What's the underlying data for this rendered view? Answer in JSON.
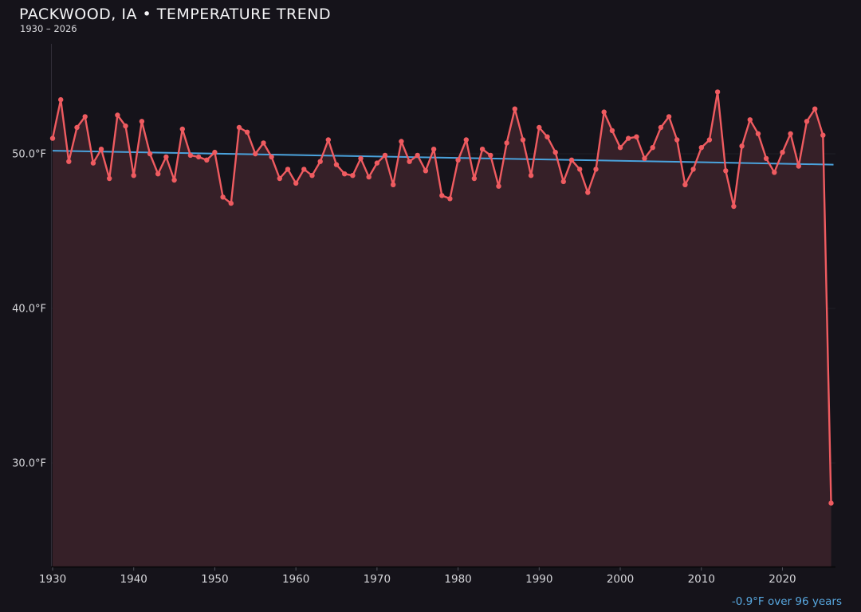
{
  "header": {
    "title": "PACKWOOD, IA • TEMPERATURE TREND",
    "subtitle": "1930 – 2026"
  },
  "footer": {
    "trend_label": "-0.9°F over 96 years"
  },
  "chart_data": {
    "type": "line",
    "title": "PACKWOOD, IA • TEMPERATURE TREND",
    "subtitle": "1930 – 2026",
    "xlabel": "",
    "ylabel": "",
    "legend_position": "none",
    "grid": "faint-horizontal",
    "area_fill_below_line": true,
    "xlim": [
      1929.9,
      2026.5
    ],
    "ylim": [
      23.3,
      57.1
    ],
    "y_ticks": [
      {
        "value": 50,
        "label": "50.0°F"
      },
      {
        "value": 40,
        "label": "40.0°F"
      },
      {
        "value": 30,
        "label": "30.0°F"
      }
    ],
    "x_ticks": [
      {
        "value": 1930,
        "label": "1930"
      },
      {
        "value": 1940,
        "label": "1940"
      },
      {
        "value": 1950,
        "label": "1950"
      },
      {
        "value": 1960,
        "label": "1960"
      },
      {
        "value": 1970,
        "label": "1970"
      },
      {
        "value": 1980,
        "label": "1980"
      },
      {
        "value": 1990,
        "label": "1990"
      },
      {
        "value": 2000,
        "label": "2000"
      },
      {
        "value": 2010,
        "label": "2010"
      },
      {
        "value": 2020,
        "label": "2020"
      }
    ],
    "years": [
      1930,
      1931,
      1932,
      1933,
      1934,
      1935,
      1936,
      1937,
      1938,
      1939,
      1940,
      1941,
      1942,
      1943,
      1944,
      1945,
      1946,
      1947,
      1948,
      1949,
      1950,
      1951,
      1952,
      1953,
      1954,
      1955,
      1956,
      1957,
      1958,
      1959,
      1960,
      1961,
      1962,
      1963,
      1964,
      1965,
      1966,
      1967,
      1968,
      1969,
      1970,
      1971,
      1972,
      1973,
      1974,
      1975,
      1976,
      1977,
      1978,
      1979,
      1980,
      1981,
      1982,
      1983,
      1984,
      1985,
      1986,
      1987,
      1988,
      1989,
      1990,
      1991,
      1992,
      1993,
      1994,
      1995,
      1996,
      1997,
      1998,
      1999,
      2000,
      2001,
      2002,
      2003,
      2004,
      2005,
      2006,
      2007,
      2008,
      2009,
      2010,
      2011,
      2012,
      2013,
      2014,
      2015,
      2016,
      2017,
      2018,
      2019,
      2020,
      2021,
      2022,
      2023,
      2024,
      2025,
      2026
    ],
    "values": [
      51.0,
      53.5,
      49.5,
      51.7,
      52.4,
      49.4,
      50.3,
      48.4,
      52.5,
      51.8,
      48.6,
      52.1,
      50.0,
      48.7,
      49.8,
      48.3,
      51.6,
      49.9,
      49.8,
      49.6,
      50.1,
      47.2,
      46.8,
      51.7,
      51.4,
      50.0,
      50.7,
      49.8,
      48.4,
      49.0,
      48.1,
      49.0,
      48.6,
      49.5,
      50.9,
      49.3,
      48.7,
      48.6,
      49.7,
      48.5,
      49.4,
      49.9,
      48.0,
      50.8,
      49.5,
      49.9,
      48.9,
      50.3,
      47.3,
      47.1,
      49.6,
      50.9,
      48.4,
      50.3,
      49.9,
      47.9,
      50.7,
      52.9,
      50.9,
      48.6,
      51.7,
      51.1,
      50.1,
      48.2,
      49.6,
      49.0,
      47.5,
      49.0,
      52.7,
      51.5,
      50.4,
      51.0,
      51.1,
      49.7,
      50.4,
      51.7,
      52.4,
      50.9,
      48.0,
      49.0,
      50.4,
      50.9,
      54.0,
      48.9,
      46.6,
      50.5,
      52.2,
      51.3,
      49.7,
      48.8,
      50.1,
      51.3,
      49.2,
      52.1,
      52.9,
      51.2,
      27.4
    ],
    "trend": {
      "type": "linear",
      "start_year": 1930,
      "end_year": 2026,
      "start_value": 50.2,
      "end_value": 49.3,
      "delta_label": "-0.9°F over 96 years",
      "span_years": 96
    },
    "colors": {
      "background": "#15131a",
      "line": "#ef5b60",
      "marker": "#ef5b60",
      "area_fill": "#362028",
      "trend_line": "#4aa2dc",
      "grid": "rgba(255,255,255,0.05)",
      "tick_label": "#d6d6da",
      "tick_mark": "#55555e",
      "title_text": "#f4f4f6",
      "subtitle_text": "#d8d8dc",
      "footnote_text": "#58a8e0"
    }
  }
}
